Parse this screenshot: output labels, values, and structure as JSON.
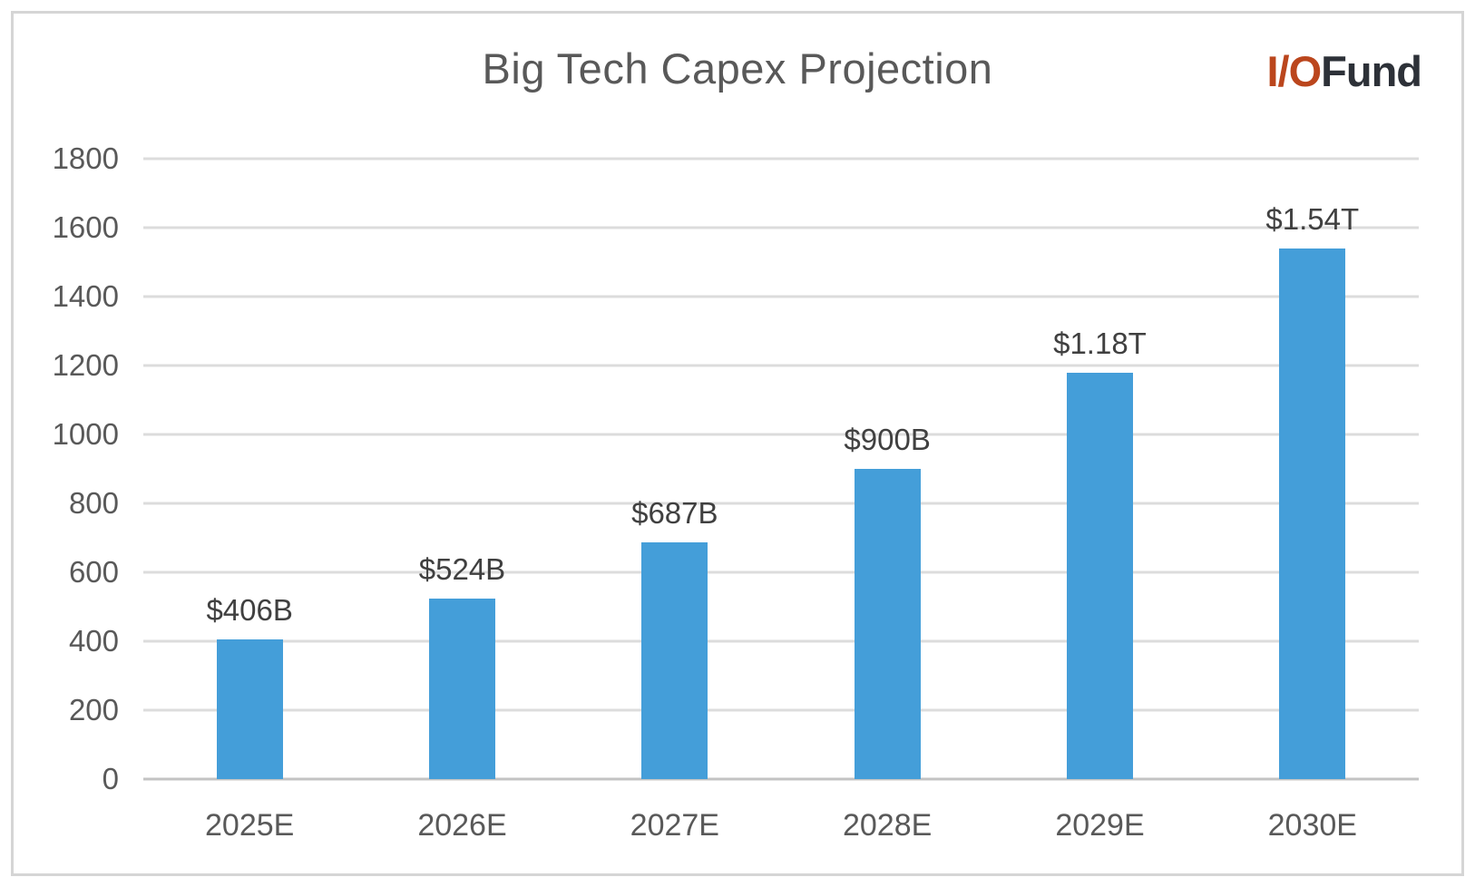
{
  "header": {
    "title": "Big Tech Capex Projection",
    "logo": {
      "part1": "I/O",
      "part2": "Fund"
    }
  },
  "chart_data": {
    "type": "bar",
    "title": "Big Tech Capex Projection",
    "categories": [
      "2025E",
      "2026E",
      "2027E",
      "2028E",
      "2029E",
      "2030E"
    ],
    "values": [
      406,
      524,
      687,
      900,
      1180,
      1540
    ],
    "value_labels": [
      "$406B",
      "$524B",
      "$687B",
      "$900B",
      "$1.18T",
      "$1.54T"
    ],
    "xlabel": "",
    "ylabel": "",
    "ylim": [
      0,
      1800
    ],
    "yticks": [
      1800,
      1600,
      1400,
      1200,
      1000,
      800,
      600,
      400,
      200,
      0
    ],
    "grid": true,
    "legend": "none",
    "bar_color": "#449ED9"
  },
  "colors": {
    "bar": "#449ED9",
    "logo-accent": "#BB461D",
    "logo-dark": "#2D3138",
    "grid": "#DCDCDC",
    "axis": "#C3C3C3",
    "text": "#595959",
    "label": "#404040",
    "border": "#D5D5D5"
  }
}
